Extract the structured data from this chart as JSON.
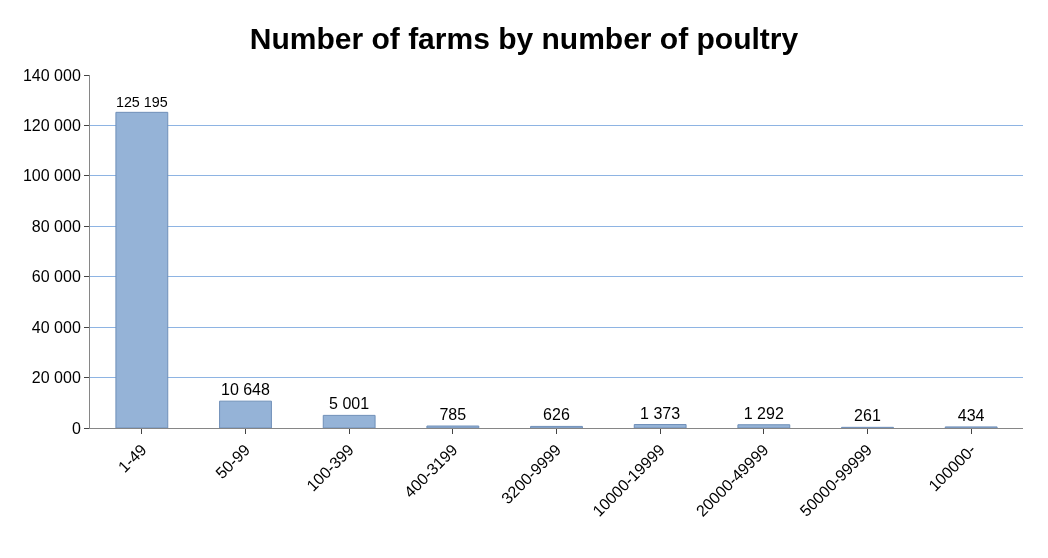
{
  "chart_data": {
    "type": "bar",
    "title": "Number of farms by number of poultry",
    "categories": [
      "1-49",
      "50-99",
      "100-399",
      "400-3199",
      "3200-9999",
      "10000-19999",
      "20000-49999",
      "50000-99999",
      "100000-"
    ],
    "values": [
      125195,
      10648,
      5001,
      785,
      626,
      1373,
      1292,
      261,
      434
    ],
    "value_labels": [
      "125 195",
      "10 648",
      "5 001",
      "785",
      "626",
      "1 373",
      "1 292",
      "261",
      "434"
    ],
    "color": "#95b3d7",
    "ylim": [
      0,
      140000
    ],
    "yticks": [
      {
        "value": 0,
        "label": "0"
      },
      {
        "value": 20000,
        "label": "20 000"
      },
      {
        "value": 40000,
        "label": "40 000"
      },
      {
        "value": 60000,
        "label": "60 000"
      },
      {
        "value": 80000,
        "label": "80 000"
      },
      {
        "value": 100000,
        "label": "100 000"
      },
      {
        "value": 120000,
        "label": "120 000"
      },
      {
        "value": 140000,
        "label": "140 000"
      }
    ],
    "grid": "y",
    "legend": false
  }
}
